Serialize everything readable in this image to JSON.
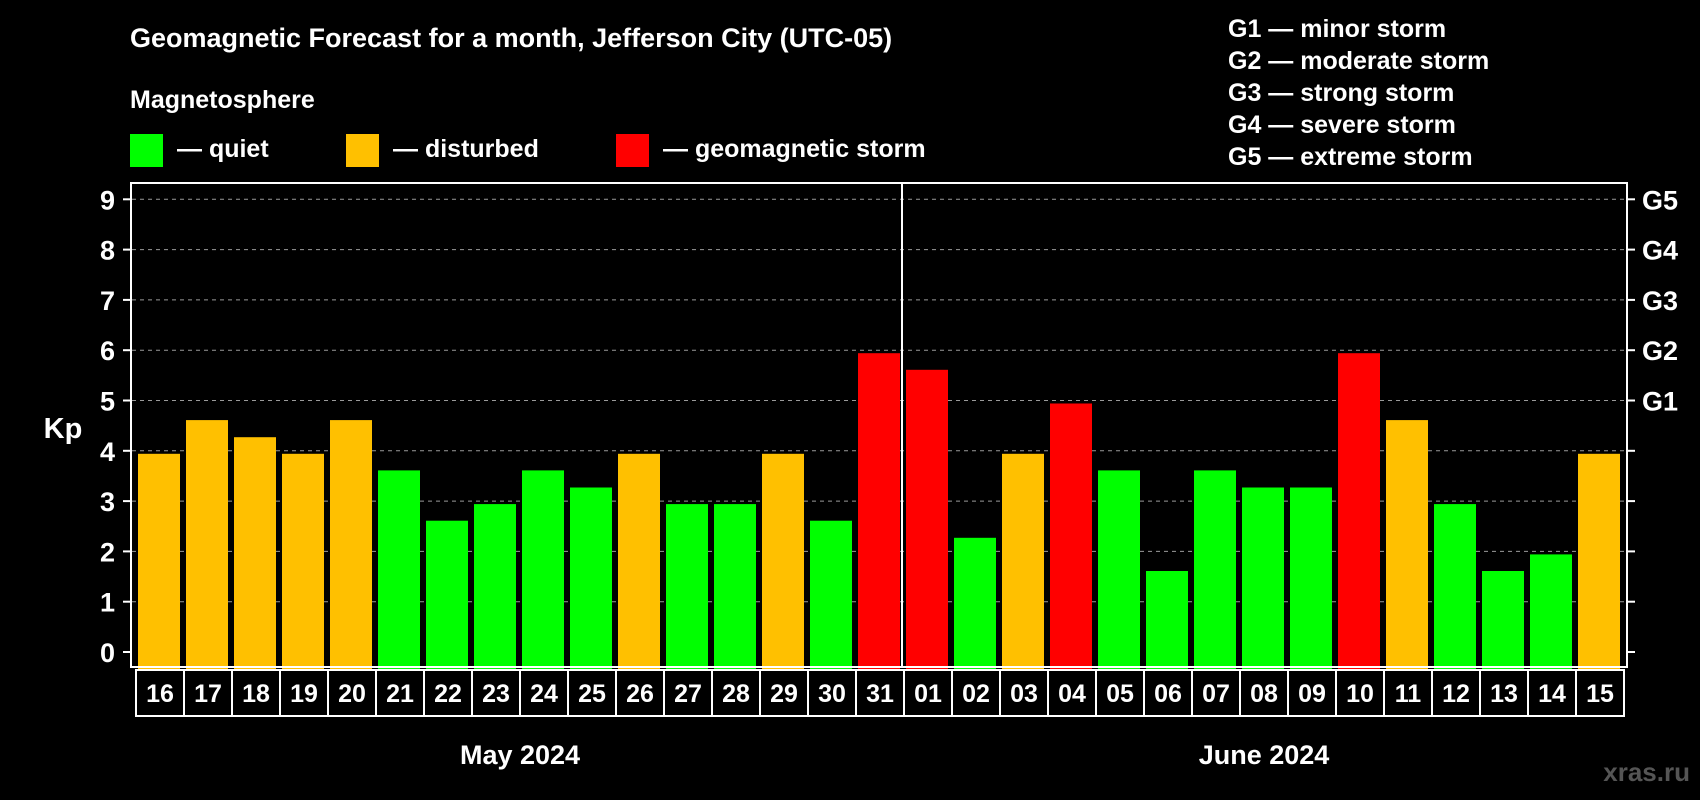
{
  "chart_data": {
    "type": "bar",
    "title": "Geomagnetic Forecast for a month, Jefferson City (UTC-05)",
    "legend_title": "Magnetosphere",
    "legend": [
      {
        "key": "quiet",
        "label": "— quiet",
        "color": "#00ff00"
      },
      {
        "key": "disturbed",
        "label": "— disturbed",
        "color": "#ffc000"
      },
      {
        "key": "storm",
        "label": "— geomagnetic storm",
        "color": "#ff0000"
      }
    ],
    "storm_scale": [
      "G1 — minor storm",
      "G2 — moderate storm",
      "G3 — strong storm",
      "G4 — severe storm",
      "G5 — extreme storm"
    ],
    "ylabel": "Kp",
    "ylim": [
      0,
      9
    ],
    "yticks": [
      0,
      1,
      2,
      3,
      4,
      5,
      6,
      7,
      8,
      9
    ],
    "right_ticks": [
      {
        "value": 5,
        "label": "G1"
      },
      {
        "value": 6,
        "label": "G2"
      },
      {
        "value": 7,
        "label": "G3"
      },
      {
        "value": 8,
        "label": "G4"
      },
      {
        "value": 9,
        "label": "G5"
      }
    ],
    "categories": [
      "16",
      "17",
      "18",
      "19",
      "20",
      "21",
      "22",
      "23",
      "24",
      "25",
      "26",
      "27",
      "28",
      "29",
      "30",
      "31",
      "01",
      "02",
      "03",
      "04",
      "05",
      "06",
      "07",
      "08",
      "09",
      "10",
      "11",
      "12",
      "13",
      "14",
      "15"
    ],
    "values": [
      4.0,
      4.67,
      4.33,
      4.0,
      4.67,
      3.67,
      2.67,
      3.0,
      3.67,
      3.33,
      4.0,
      3.0,
      3.0,
      4.0,
      2.67,
      6.0,
      5.67,
      2.33,
      4.0,
      5.0,
      3.67,
      1.67,
      3.67,
      3.33,
      3.33,
      6.0,
      4.67,
      3.0,
      1.67,
      2.0,
      4.0
    ],
    "levels": [
      "disturbed",
      "disturbed",
      "disturbed",
      "disturbed",
      "disturbed",
      "quiet",
      "quiet",
      "quiet",
      "quiet",
      "quiet",
      "disturbed",
      "quiet",
      "quiet",
      "disturbed",
      "quiet",
      "storm",
      "storm",
      "quiet",
      "disturbed",
      "storm",
      "quiet",
      "quiet",
      "quiet",
      "quiet",
      "quiet",
      "storm",
      "disturbed",
      "quiet",
      "quiet",
      "quiet",
      "disturbed"
    ],
    "months": [
      {
        "label": "May 2024",
        "start": 0,
        "count": 16
      },
      {
        "label": "June 2024",
        "start": 16,
        "count": 15
      }
    ],
    "grid": true
  },
  "watermark": "xras.ru"
}
